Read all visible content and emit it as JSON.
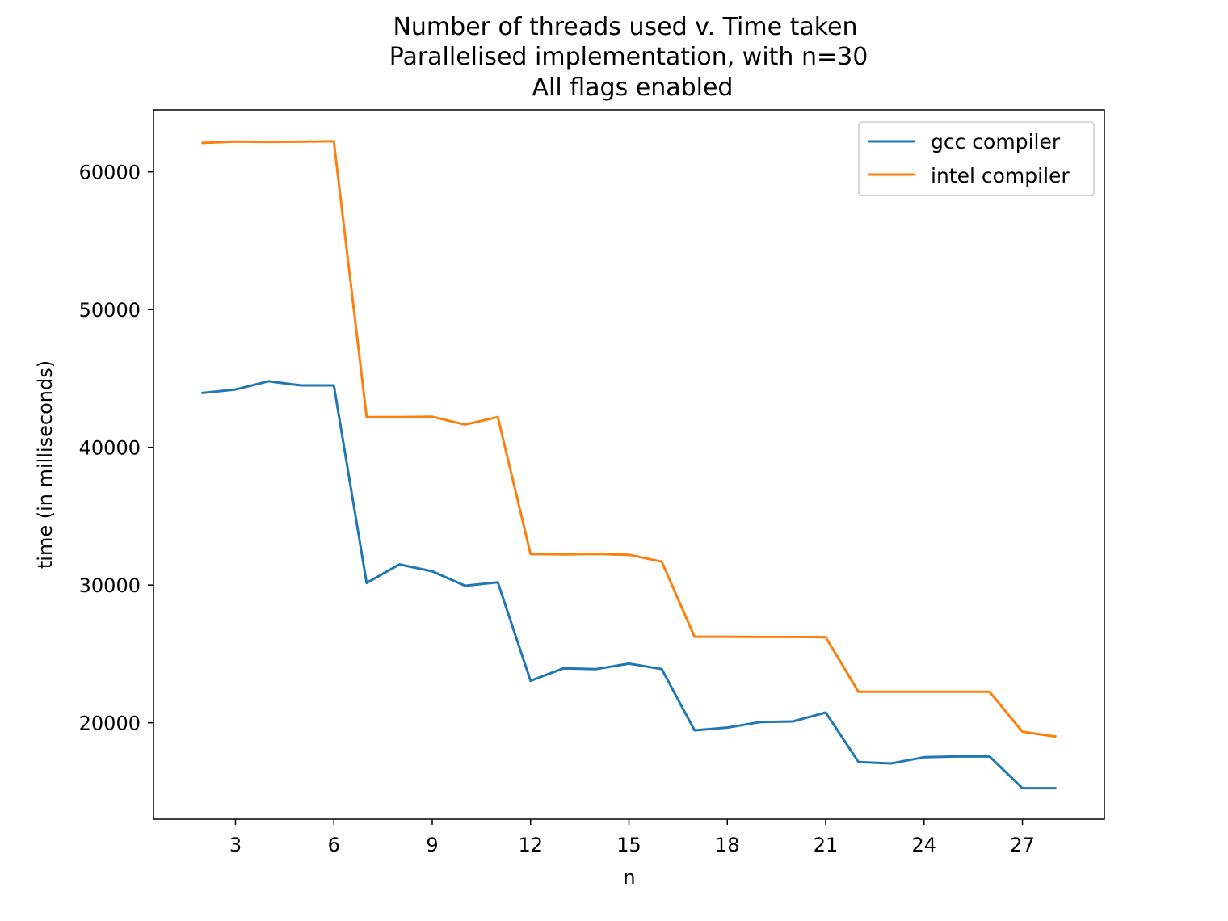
{
  "chart_data": {
    "type": "line",
    "title_lines": [
      "Number of threads used v. Time taken",
      "Parallelised implementation, with n=30",
      "All flags enabled"
    ],
    "xlabel": "n",
    "ylabel": "time (in milliseconds)",
    "xlim": [
      0.5,
      29.5
    ],
    "ylim": [
      13000,
      64500
    ],
    "xticks": [
      3,
      6,
      9,
      12,
      15,
      18,
      21,
      24,
      27
    ],
    "yticks": [
      20000,
      30000,
      40000,
      50000,
      60000
    ],
    "x": [
      2,
      3,
      4,
      5,
      6,
      7,
      8,
      9,
      10,
      11,
      12,
      13,
      14,
      15,
      16,
      17,
      18,
      19,
      20,
      21,
      22,
      23,
      24,
      25,
      26,
      27,
      28
    ],
    "series": [
      {
        "name": "gcc compiler",
        "color": "#1f77b4",
        "values": [
          43950,
          44200,
          44800,
          44500,
          44500,
          30150,
          31500,
          31000,
          29950,
          30200,
          23050,
          23950,
          23900,
          24300,
          23900,
          19450,
          19650,
          20050,
          20100,
          20750,
          17150,
          17050,
          17500,
          17550,
          17550,
          15250,
          15250
        ]
      },
      {
        "name": "intel compiler",
        "color": "#ff7f0e",
        "values": [
          62100,
          62200,
          62180,
          62190,
          62220,
          42200,
          42200,
          42220,
          41650,
          42200,
          32250,
          32230,
          32250,
          32200,
          31700,
          26250,
          26250,
          26230,
          26230,
          26220,
          22250,
          22250,
          22250,
          22250,
          22250,
          19350,
          19000
        ]
      }
    ],
    "legend": {
      "placement": "top-right"
    },
    "grid": false
  }
}
